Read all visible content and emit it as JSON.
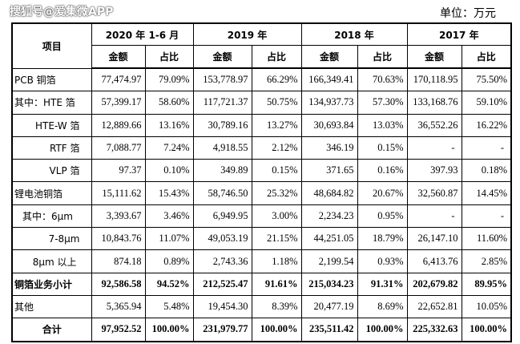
{
  "watermark": "搜狐号@爱集微APP",
  "unit": "单位：万元",
  "table": {
    "item_header": "项目",
    "periods": [
      "2020 年 1-6 月",
      "2019 年",
      "2018 年",
      "2017 年"
    ],
    "sub_headers": [
      "金额",
      "占比"
    ],
    "rows": [
      [
        "PCB 铜箔",
        "77,474.97",
        "79.09%",
        "153,778.97",
        "66.29%",
        "166,349.41",
        "70.63%",
        "170,118.95",
        "75.50%"
      ],
      [
        "其中：HTE 箔",
        "57,399.17",
        "58.60%",
        "117,721.37",
        "50.75%",
        "134,937.73",
        "57.30%",
        "133,168.76",
        "59.10%"
      ],
      [
        "HTE-W 箔",
        "12,889.66",
        "13.16%",
        "30,789.16",
        "13.27%",
        "30,693.84",
        "13.03%",
        "36,552.26",
        "16.22%"
      ],
      [
        "RTF 箔",
        "7,088.77",
        "7.24%",
        "4,918.55",
        "2.12%",
        "346.19",
        "0.15%",
        "-",
        "-"
      ],
      [
        "VLP 箔",
        "97.37",
        "0.10%",
        "349.89",
        "0.15%",
        "371.65",
        "0.16%",
        "397.93",
        "0.18%"
      ],
      [
        "锂电池铜箔",
        "15,111.62",
        "15.43%",
        "58,746.50",
        "25.32%",
        "48,684.82",
        "20.67%",
        "32,560.87",
        "14.45%"
      ],
      [
        "其中：6μm",
        "3,393.67",
        "3.46%",
        "6,949.95",
        "3.00%",
        "2,234.23",
        "0.95%",
        "-",
        "-"
      ],
      [
        "7-8μm",
        "10,843.76",
        "11.07%",
        "49,053.19",
        "21.15%",
        "44,251.05",
        "18.79%",
        "26,147.10",
        "11.60%"
      ],
      [
        "8μm 以上",
        "874.18",
        "0.89%",
        "2,743.36",
        "1.18%",
        "2,199.54",
        "0.93%",
        "6,413.76",
        "2.85%"
      ],
      [
        "铜箔业务小计",
        "92,586.58",
        "94.52%",
        "212,525.47",
        "91.61%",
        "215,034.23",
        "91.31%",
        "202,679.82",
        "89.95%"
      ],
      [
        "其他",
        "5,365.94",
        "5.48%",
        "19,454.30",
        "8.39%",
        "20,477.19",
        "8.69%",
        "22,652.81",
        "10.05%"
      ],
      [
        "合计",
        "97,952.52",
        "100.00%",
        "231,979.77",
        "100.00%",
        "235,511.42",
        "100.00%",
        "225,332.63",
        "100.00%"
      ]
    ]
  }
}
